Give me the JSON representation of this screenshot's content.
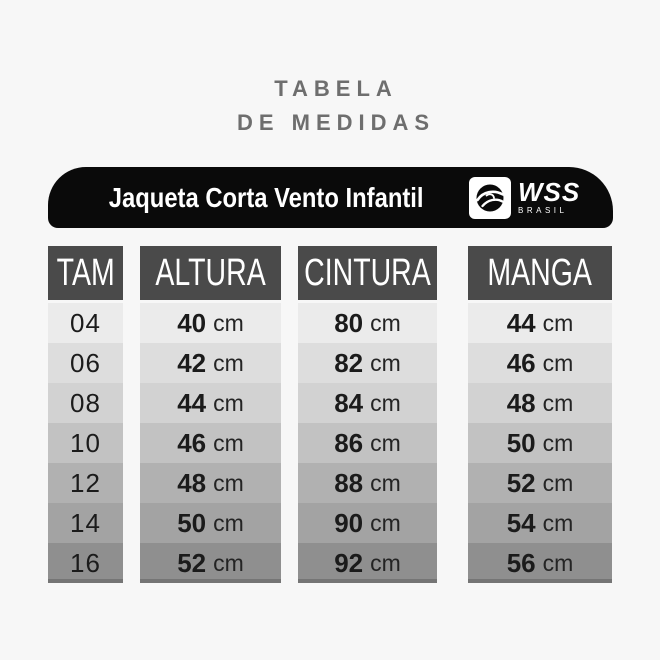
{
  "page": {
    "background": "#f7f7f7"
  },
  "title": {
    "line1": "TABELA",
    "line2": "DE MEDIDAS",
    "color": "#6e6e6e"
  },
  "banner": {
    "product": "Jaqueta Corta Vento Infantil",
    "background": "#0a0a0a",
    "text_color": "#ffffff",
    "brand": {
      "name": "WSS",
      "subtitle": "BRASIL",
      "icon": "wave-icon"
    }
  },
  "table": {
    "header_bg": "#4a4a4a",
    "header_text_color": "#ffffff",
    "row_shades": [
      "#ebebeb",
      "#dddddd",
      "#d2d2d2",
      "#c2c2c2",
      "#b1b1b1",
      "#a3a3a3",
      "#8f8f8f"
    ],
    "last_row_edge": "#757575",
    "columns": [
      {
        "key": "tam",
        "header": "TAM",
        "unit": "",
        "values": [
          "04",
          "06",
          "08",
          "10",
          "12",
          "14",
          "16"
        ]
      },
      {
        "key": "altura",
        "header": "ALTURA",
        "unit": "cm",
        "values": [
          "40",
          "42",
          "44",
          "46",
          "48",
          "50",
          "52"
        ]
      },
      {
        "key": "cintura",
        "header": "CINTURA",
        "unit": "cm",
        "values": [
          "80",
          "82",
          "84",
          "86",
          "88",
          "90",
          "92"
        ]
      },
      {
        "key": "manga",
        "header": "MANGA",
        "unit": "cm",
        "values": [
          "44",
          "46",
          "48",
          "50",
          "52",
          "54",
          "56"
        ]
      }
    ]
  },
  "chart_data": {
    "type": "table",
    "title": "TABELA DE MEDIDAS",
    "subtitle": "Jaqueta Corta Vento Infantil",
    "brand": "WSS BRASIL",
    "columns": [
      "TAM",
      "ALTURA",
      "CINTURA",
      "MANGA"
    ],
    "rows": [
      [
        "04",
        "40 cm",
        "80 cm",
        "44 cm"
      ],
      [
        "06",
        "42 cm",
        "82 cm",
        "46 cm"
      ],
      [
        "08",
        "44 cm",
        "84 cm",
        "48 cm"
      ],
      [
        "10",
        "46 cm",
        "86 cm",
        "50 cm"
      ],
      [
        "12",
        "48 cm",
        "88 cm",
        "52 cm"
      ],
      [
        "14",
        "50 cm",
        "90 cm",
        "54 cm"
      ],
      [
        "16",
        "52 cm",
        "92 cm",
        "56 cm"
      ]
    ],
    "units": "cm",
    "layout": "each column rendered as separate vertical strip; rows shade light-to-dark top-to-bottom"
  }
}
